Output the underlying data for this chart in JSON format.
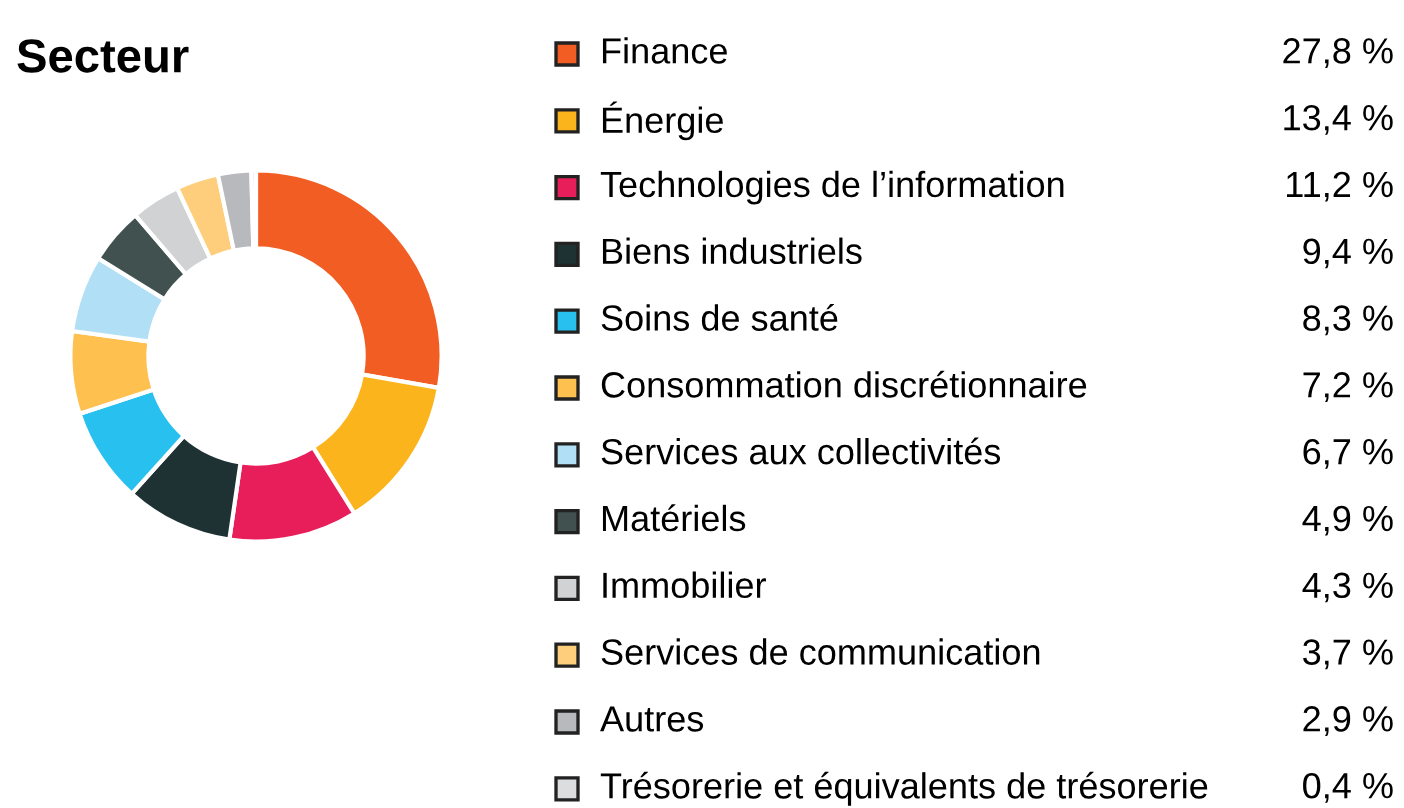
{
  "chart_data": {
    "type": "donut",
    "title": "Secteur",
    "categories": [
      "Finance",
      "Énergie",
      "Technologies de l’information",
      "Biens industriels",
      "Soins de santé",
      "Consommation discrétionnaire",
      "Services aux collectivités",
      "Matériels",
      "Immobilier",
      "Services de communication",
      "Autres",
      "Trésorerie et équivalents de trésorerie"
    ],
    "values": [
      27.8,
      13.4,
      11.2,
      9.4,
      8.3,
      7.2,
      6.7,
      4.9,
      4.3,
      3.7,
      2.9,
      0.4
    ],
    "value_labels": [
      "27,8 %",
      "13,4 %",
      "11,2 %",
      "9,4 %",
      "8,3 %",
      "7,2 %",
      "6,7 %",
      "4,9 %",
      "4,3 %",
      "3,7 %",
      "2,9 %",
      "0,4 %"
    ],
    "colors": [
      "#f15d22",
      "#fcb41c",
      "#e81e5b",
      "#1e3234",
      "#27c0ef",
      "#fec04f",
      "#b1e0f6",
      "#405150",
      "#d1d2d4",
      "#fece7c",
      "#b8b9bd",
      "#dcdddf"
    ],
    "legend": "right"
  }
}
